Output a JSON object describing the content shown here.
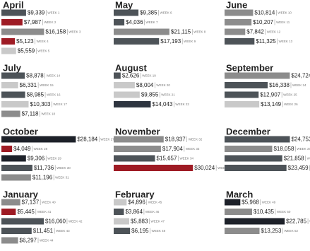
{
  "chart_data": [
    {
      "type": "bar",
      "orientation": "horizontal",
      "title": "April",
      "categories": [
        "WEEK 1",
        "WEEK 2",
        "WEEK 3",
        "WEEK 4",
        "WEEK 5"
      ],
      "values": [
        9339,
        7987,
        16158,
        5123,
        5559
      ],
      "value_labels": [
        "$9,339",
        "$7,987",
        "$16,158",
        "$5,123",
        "$5,559"
      ],
      "colors": [
        "#4d5358",
        "#9e1b24",
        "#8c8c8c",
        "#9e1b24",
        "#c9c9c9"
      ]
    },
    {
      "type": "bar",
      "orientation": "horizontal",
      "title": "May",
      "categories": [
        "WEEK 6",
        "WEEK 7",
        "WEEK 8",
        "WEEK 9"
      ],
      "values": [
        9385,
        4036,
        21115,
        17193
      ],
      "value_labels": [
        "$9,385",
        "$4,036",
        "$21,115",
        "$17,193"
      ],
      "colors": [
        "#4d5358",
        "#4d5358",
        "#8c8c8c",
        "#4d5358"
      ]
    },
    {
      "type": "bar",
      "orientation": "horizontal",
      "title": "June",
      "categories": [
        "WEEK 10",
        "WEEK 11",
        "WEEK 12",
        "WEEK 13"
      ],
      "values": [
        10814,
        10207,
        7842,
        11325
      ],
      "value_labels": [
        "$10,814",
        "$10,207",
        "$7,842",
        "$11,325"
      ],
      "colors": [
        "#8c8c8c",
        "#8c8c8c",
        "#8c8c8c",
        "#4d5358"
      ]
    },
    {
      "type": "bar",
      "orientation": "horizontal",
      "title": "July",
      "categories": [
        "WEEK 14",
        "WEEK 15",
        "WEEK 16",
        "WEEK 17",
        "WEEK 18"
      ],
      "values": [
        8878,
        6331,
        8985,
        10303,
        7118
      ],
      "value_labels": [
        "$8,878",
        "$6,331",
        "$8,985",
        "$10,303",
        "$7,118"
      ],
      "colors": [
        "#4d5358",
        "#c9c9c9",
        "#4d5358",
        "#c9c9c9",
        "#8c8c8c"
      ]
    },
    {
      "type": "bar",
      "orientation": "horizontal",
      "title": "August",
      "categories": [
        "WEEK 19",
        "WEEK 20",
        "WEEK 21",
        "WEEK 22"
      ],
      "values": [
        2626,
        8004,
        9855,
        14043
      ],
      "value_labels": [
        "$2,626",
        "$8,004",
        "$9,855",
        "$14,043"
      ],
      "colors": [
        "#4d5358",
        "#c9c9c9",
        "#c9c9c9",
        "#2e3540"
      ]
    },
    {
      "type": "bar",
      "orientation": "horizontal",
      "title": "September",
      "categories": [
        "WEEK 23",
        "WEEK 24",
        "WEEK 25",
        "WEEK 26"
      ],
      "values": [
        24724,
        16338,
        12907,
        13149
      ],
      "value_labels": [
        "$24,724",
        "$16,338",
        "$12,907",
        "$13,149"
      ],
      "colors": [
        "#8c8c8c",
        "#4d5358",
        "#4d5358",
        "#c9c9c9"
      ]
    },
    {
      "type": "bar",
      "orientation": "horizontal",
      "title": "October",
      "categories": [
        "WEEK 27",
        "WEEK 28",
        "WEEK 29",
        "WEEK 30",
        "WEEK 31"
      ],
      "values": [
        28184,
        4049,
        9306,
        11736,
        11196
      ],
      "value_labels": [
        "$28,184",
        "$4,049",
        "$9,306",
        "$11,736",
        "$11,196"
      ],
      "colors": [
        "#1d2129",
        "#9e1b24",
        "#1d2129",
        "#4d5358",
        "#8c8c8c"
      ]
    },
    {
      "type": "bar",
      "orientation": "horizontal",
      "title": "November",
      "categories": [
        "WEEK 32",
        "WEEK 33",
        "WEEK 34",
        "WEEK 35"
      ],
      "values": [
        18937,
        17904,
        15657,
        30024
      ],
      "value_labels": [
        "$18,937",
        "$17,904",
        "$15,657",
        "$30,024"
      ],
      "colors": [
        "#8c8c8c",
        "#8c8c8c",
        "#4d5358",
        "#9e1b24"
      ]
    },
    {
      "type": "bar",
      "orientation": "horizontal",
      "title": "December",
      "categories": [
        "WEEK 36",
        "WEEK 37",
        "WEEK 38",
        "WEEK 39"
      ],
      "values": [
        24753,
        18058,
        21858,
        23459
      ],
      "value_labels": [
        "$24,753",
        "$18,058",
        "$21,858",
        "$23,459"
      ],
      "colors": [
        "#4d5358",
        "#8c8c8c",
        "#4d5358",
        "#4d5358"
      ]
    },
    {
      "type": "bar",
      "orientation": "horizontal",
      "title": "January",
      "categories": [
        "WEEK 40",
        "WEEK 41",
        "WEEK 42",
        "WEEK 43",
        "WEEK 44"
      ],
      "values": [
        7137,
        5445,
        16060,
        11451,
        6297
      ],
      "value_labels": [
        "$7,137",
        "$5,445",
        "$16,060",
        "$11,451",
        "$6,297"
      ],
      "colors": [
        "#8c8c8c",
        "#9e1b24",
        "#4d5358",
        "#4d5358",
        "#8c8c8c"
      ]
    },
    {
      "type": "bar",
      "orientation": "horizontal",
      "title": "February",
      "categories": [
        "WEEK 45",
        "WEEK 46",
        "WEEK 47",
        "WEEK 48"
      ],
      "values": [
        4896,
        3864,
        5883,
        6195
      ],
      "value_labels": [
        "$4,896",
        "$3,864",
        "$5,883",
        "$6,195"
      ],
      "colors": [
        "#c9c9c9",
        "#4d5358",
        "#c9c9c9",
        "#4d5358"
      ]
    },
    {
      "type": "bar",
      "orientation": "horizontal",
      "title": "March",
      "categories": [
        "WEEK 49",
        "WEEK 50",
        "WEEK 51",
        "WEEK 52"
      ],
      "values": [
        5968,
        10435,
        22785,
        13253
      ],
      "value_labels": [
        "$5,968",
        "$10,435",
        "$22,785",
        "$13,253"
      ],
      "colors": [
        "#1d2129",
        "#8c8c8c",
        "#1d2129",
        "#8c8c8c"
      ]
    }
  ]
}
